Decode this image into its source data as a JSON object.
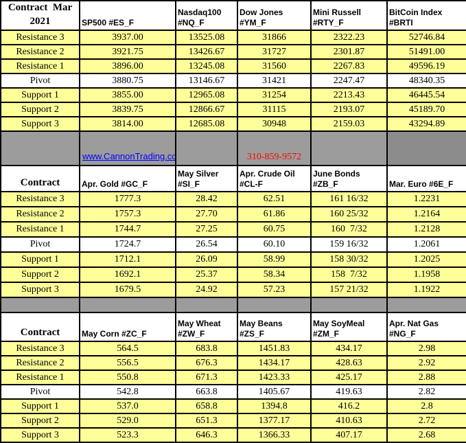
{
  "colors": {
    "row_highlight": "#FFFF99",
    "divider_gray": "#9C9C9C",
    "divider_gray_dark": "#8C8C8C",
    "link_blue": "#0000FF",
    "phone_red": "#FF0000",
    "border": "#000000"
  },
  "divider": {
    "website": "www.CannonTrading.com",
    "phone": "310-859-9572"
  },
  "sections": [
    {
      "corner_label": "Contract  Mar 2021",
      "columns": [
        "SP500 #ES_F",
        "Nasdaq100 #NQ_F",
        "Dow Jones #YM_F",
        "Mini Russell #RTY_F",
        "BitCoin Index #BRTI"
      ],
      "rows": [
        {
          "label": "Resistance 3",
          "values": [
            "3937.00",
            "13525.08",
            "31866",
            "2322.23",
            "52746.84"
          ]
        },
        {
          "label": "Resistance 2",
          "values": [
            "3921.75",
            "13426.67",
            "31727",
            "2301.87",
            "51491.00"
          ]
        },
        {
          "label": "Resistance 1",
          "values": [
            "3896.00",
            "13245.08",
            "31560",
            "2267.83",
            "49596.19"
          ]
        },
        {
          "label": "Pivot",
          "values": [
            "3880.75",
            "13146.67",
            "31421",
            "2247.47",
            "48340.35"
          ]
        },
        {
          "label": "Support 1",
          "values": [
            "3855.00",
            "12965.08",
            "31254",
            "2213.43",
            "46445.54"
          ]
        },
        {
          "label": "Support 2",
          "values": [
            "3839.75",
            "12866.67",
            "31115",
            "2193.07",
            "45189.70"
          ]
        },
        {
          "label": "Support 3",
          "values": [
            "3814.00",
            "12685.08",
            "30948",
            "2159.03",
            "43294.89"
          ]
        }
      ]
    },
    {
      "corner_label": "Contract",
      "columns": [
        "Apr. Gold #GC_F",
        "May Silver #SI_F",
        "Apr. Crude Oil #CL-F",
        "June Bonds #ZB_F",
        "Mar.  Euro #6E_F"
      ],
      "rows": [
        {
          "label": "Resistance 3",
          "values": [
            "1777.3",
            "28.42",
            "62.51",
            "161 16/32",
            "1.2231"
          ]
        },
        {
          "label": "Resistance 2",
          "values": [
            "1757.3",
            "27.70",
            "61.86",
            "160 25/32",
            "1.2164"
          ]
        },
        {
          "label": "Resistance 1",
          "values": [
            "1744.7",
            "27.25",
            "60.75",
            "160  7/32",
            "1.2128"
          ]
        },
        {
          "label": "Pivot",
          "values": [
            "1724.7",
            "26.54",
            "60.10",
            "159 16/32",
            "1.2061"
          ]
        },
        {
          "label": "Support 1",
          "values": [
            "1712.1",
            "26.09",
            "58.99",
            "158 30/32",
            "1.2025"
          ]
        },
        {
          "label": "Support 2",
          "values": [
            "1692.1",
            "25.37",
            "58.34",
            "158  7/32",
            "1.1958"
          ]
        },
        {
          "label": "Support 3",
          "values": [
            "1679.5",
            "24.92",
            "57.23",
            "157 21/32",
            "1.1922"
          ]
        }
      ]
    },
    {
      "corner_label": "Contract",
      "columns": [
        "May Corn #ZC_F",
        "May  Wheat #ZW_F",
        "May Beans #ZS_F",
        "May SoyMeal #ZM_F",
        "Apr. Nat Gas #NG_F"
      ],
      "rows": [
        {
          "label": "Resistance 3",
          "values": [
            "564.5",
            "683.8",
            "1451.83",
            "434.17",
            "2.98"
          ]
        },
        {
          "label": "Resistance 2",
          "values": [
            "556.5",
            "676.3",
            "1434.17",
            "428.63",
            "2.92"
          ]
        },
        {
          "label": "Resistance 1",
          "values": [
            "550.8",
            "671.3",
            "1423.33",
            "425.17",
            "2.88"
          ]
        },
        {
          "label": "Pivot",
          "values": [
            "542.8",
            "663.8",
            "1405.67",
            "419.63",
            "2.82"
          ]
        },
        {
          "label": "Support 1",
          "values": [
            "537.0",
            "658.8",
            "1394.8",
            "416.2",
            "2.8"
          ]
        },
        {
          "label": "Support 2",
          "values": [
            "529.0",
            "651.3",
            "1377.17",
            "410.63",
            "2.72"
          ]
        },
        {
          "label": "Support 3",
          "values": [
            "523.3",
            "646.3",
            "1366.33",
            "407.17",
            "2.68"
          ]
        }
      ]
    }
  ]
}
